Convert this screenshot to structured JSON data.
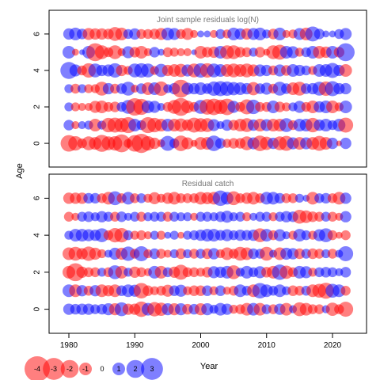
{
  "chart_data": {
    "type": "bubble",
    "xlabel": "Year",
    "ylabel": "Age",
    "x_ticks": [
      1980,
      1990,
      2000,
      2010,
      2020
    ],
    "y_ticks": [
      0,
      2,
      4,
      6
    ],
    "years_range": [
      1980,
      2022
    ],
    "ages": [
      0,
      1,
      2,
      3,
      4,
      5,
      6
    ],
    "colors": {
      "positive": "#0000FF",
      "negative": "#FF0000",
      "alpha": 0.5
    },
    "panels": [
      {
        "title": "Joint sample residuals log(N)",
        "residuals": {
          "0": [
            -1.7,
            -1.3,
            -0.6,
            -1.2,
            -1.0,
            -1.8,
            -1.2,
            -1.3,
            -2.0,
            -0.5,
            -1.7,
            -2.3,
            -1.3,
            -0.8,
            -0.4,
            1.4,
            0.6,
            -1.5,
            -0.9,
            -0.3,
            -1.0,
            -1.0,
            1.5,
            0.7,
            -0.5,
            -0.7,
            -0.7,
            -1.2,
            0.9,
            -1.5,
            -1.1,
            0.8,
            -1.2,
            -1.4,
            0.9,
            -1.0,
            0.9,
            -1.0,
            -1.4,
            -1.0,
            0.8,
            -0.2,
            0.8
          ],
          "1": [
            0.7,
            -0.4,
            0.4,
            0.5,
            -1.0,
            0.5,
            -1.3,
            -1.4,
            -1.3,
            -1.6,
            1.0,
            0.6,
            -1.6,
            -1.3,
            -1.0,
            1.0,
            -1.0,
            -1.1,
            -0.8,
            -1.4,
            -1.2,
            -1.2,
            0.9,
            0.4,
            0.8,
            -0.7,
            -1.0,
            -1.2,
            0.8,
            -1.0,
            0.9,
            -1.0,
            -1.0,
            1.2,
            -0.6,
            1.0,
            1.0,
            -1.3,
            0.8,
            1.0,
            0.6,
            1.0,
            -1.4
          ],
          "2": [
            0.5,
            -0.5,
            -0.4,
            -0.4,
            -0.9,
            -1.0,
            -0.6,
            -0.7,
            0.6,
            1.2,
            -1.9,
            -1.6,
            1.0,
            0.9,
            0.4,
            -0.6,
            -1.2,
            -2.0,
            -1.0,
            -0.6,
            1.2,
            -1.5,
            -1.7,
            -1.3,
            -1.7,
            0.9,
            -0.6,
            -1.4,
            1.3,
            -0.6,
            -0.6,
            1.0,
            -0.7,
            -0.5,
            0.5,
            0.9,
            -0.6,
            -1.0,
            0.8,
            1.0,
            -1.0,
            -0.5,
            1.0
          ],
          "3": [
            0.5,
            -0.6,
            0.5,
            -0.5,
            -0.5,
            -1.2,
            0.8,
            -0.6,
            0.7,
            1.2,
            -0.4,
            0.7,
            -1.0,
            1.0,
            -1.3,
            0.5,
            0.8,
            -2.0,
            0.9,
            0.8,
            1.0,
            0.7,
            1.3,
            1.4,
            1.3,
            1.1,
            1.0,
            0.8,
            -1.1,
            0.7,
            0.9,
            -0.6,
            1.2,
            0.7,
            -1.0,
            -1.2,
            0.7,
            0.8,
            1.2,
            -1.3,
            1.4,
            0.8,
            0.8
          ],
          "4": [
            1.8,
            0.9,
            -0.6,
            -1.3,
            1.2,
            0.8,
            0.9,
            1.3,
            -0.8,
            -0.5,
            1.2,
            1.3,
            1.2,
            -0.5,
            1.1,
            -0.8,
            -1.0,
            -1.1,
            0.9,
            -1.2,
            1.3,
            -1.3,
            1.2,
            1.0,
            -1.0,
            -1.2,
            -1.0,
            -1.2,
            -0.9,
            0.9,
            0.8,
            -0.6,
            0.9,
            -0.7,
            1.0,
            0.8,
            0.6,
            -0.5,
            1.0,
            1.0,
            1.4,
            0.8,
            -1.0
          ],
          "5": [
            1.0,
            -0.3,
            0.2,
            1.0,
            -2.0,
            -1.2,
            -0.6,
            -1.2,
            -0.4,
            0.9,
            -0.7,
            -1.0,
            -0.4,
            0.7,
            0.3,
            -0.6,
            -0.5,
            -0.4,
            -0.4,
            0.2,
            -1.0,
            -0.7,
            -0.8,
            1.0,
            -1.2,
            -1.2,
            -0.7,
            -0.6,
            0.5,
            -0.7,
            -0.3,
            -1.2,
            -1.4,
            1.0,
            0.9,
            -0.5,
            0.6,
            1.0,
            -1.0,
            -0.8,
            1.0,
            -0.7,
            2.0
          ],
          "6": [
            0.8,
            1.0,
            0.7,
            -0.9,
            -0.8,
            -0.8,
            -0.7,
            -1.2,
            -1.0,
            0.6,
            0.8,
            -0.6,
            -0.6,
            -0.7,
            -0.9,
            1.0,
            0.9,
            -0.6,
            -0.9,
            -0.4,
            0.3,
            0.3,
            -0.4,
            0.6,
            -0.5,
            1.0,
            0.8,
            -0.8,
            0.9,
            1.0,
            0.5,
            -0.7,
            1.0,
            -0.4,
            -0.5,
            0.9,
            -1.0,
            1.4,
            0.7,
            0.3,
            0.3,
            0.6,
            0.9
          ]
        }
      },
      {
        "title": "Residual catch",
        "residuals": {
          "0": [
            0.8,
            0.7,
            0.8,
            0.8,
            0.6,
            0.7,
            0.9,
            -0.9,
            1.2,
            -0.8,
            -0.8,
            -1.5,
            1.0,
            -1.3,
            -1.1,
            0.9,
            -0.9,
            0.9,
            -0.7,
            0.7,
            -0.9,
            0.9,
            0.5,
            1.0,
            0.8,
            -0.5,
            -0.6,
            -1.0,
            1.0,
            -1.0,
            0.6,
            -0.6,
            0.8,
            -1.0,
            0.4,
            -1.2,
            -1.0,
            -0.6,
            -0.6,
            0.4,
            -1.1,
            -0.6,
            -1.4
          ],
          "1": [
            1.0,
            -1.0,
            0.8,
            -0.6,
            0.8,
            -1.0,
            -0.8,
            -1.0,
            0.7,
            1.0,
            0.9,
            -1.5,
            -0.7,
            -0.5,
            -0.6,
            -0.9,
            0.7,
            0.9,
            -0.5,
            -0.7,
            -0.7,
            0.7,
            -0.5,
            0.7,
            -0.4,
            -0.6,
            1.0,
            0.6,
            -1.0,
            1.5,
            1.0,
            0.6,
            1.0,
            0.5,
            -0.7,
            -0.6,
            0.6,
            -1.0,
            -1.2,
            -1.6,
            1.2,
            1.0,
            -0.6
          ],
          "2": [
            -1.0,
            -2.0,
            -0.8,
            -0.6,
            -0.6,
            0.5,
            -0.6,
            1.2,
            -1.0,
            0.5,
            -0.8,
            -0.6,
            -0.4,
            1.0,
            -1.0,
            0.6,
            -0.8,
            -1.4,
            -0.6,
            -0.6,
            -0.5,
            -0.7,
            0.9,
            0.8,
            1.0,
            -1.2,
            0.5,
            1.0,
            0.6,
            0.9,
            -0.7,
            -1.0,
            1.5,
            -1.1,
            -0.6,
            1.0,
            0.9,
            -0.5,
            0.6,
            0.7,
            0.6,
            0.4,
            0.7
          ],
          "3": [
            -1.0,
            -1.2,
            -0.8,
            -1.3,
            -0.9,
            -0.5,
            0.4,
            0.9,
            -0.9,
            1.3,
            -0.6,
            1.4,
            -0.5,
            0.7,
            -0.6,
            -0.4,
            0.5,
            -0.7,
            0.5,
            -0.6,
            0.6,
            -0.7,
            0.8,
            -0.5,
            -1.0,
            -0.6,
            -1.2,
            -1.0,
            0.7,
            0.6,
            -1.2,
            0.4,
            -1.0,
            0.9,
            0.8,
            -0.7,
            0.6,
            -0.7,
            -0.6,
            0.5,
            -0.6,
            0.4,
            1.4
          ],
          "4": [
            0.5,
            1.0,
            1.0,
            0.9,
            0.8,
            1.2,
            -0.6,
            -1.3,
            -1.3,
            0.6,
            -0.5,
            -0.6,
            -0.4,
            0.5,
            -0.5,
            0.3,
            0.5,
            -0.3,
            0.5,
            0.6,
            0.8,
            1.0,
            1.0,
            0.7,
            0.9,
            0.6,
            0.8,
            0.7,
            0.8,
            -1.2,
            1.0,
            -0.6,
            0.9,
            0.4,
            -0.5,
            1.0,
            0.6,
            -0.5,
            0.9,
            1.2,
            -0.6,
            -0.3,
            -0.6
          ],
          "5": [
            -0.6,
            -0.4,
            0.6,
            0.7,
            0.5,
            0.8,
            0.6,
            -0.6,
            0.7,
            0.4,
            0.6,
            -0.6,
            0.5,
            0.6,
            0.6,
            -0.6,
            0.6,
            0.5,
            0.5,
            -0.4,
            0.6,
            0.6,
            0.5,
            0.7,
            0.9,
            0.5,
            0.6,
            -0.5,
            0.4,
            0.6,
            0.6,
            -0.5,
            0.6,
            0.8,
            0.7,
            -1.2,
            -1.0,
            -0.7,
            -0.6,
            0.6,
            -0.6,
            -0.4,
            0.8
          ],
          "6": [
            -0.8,
            -0.8,
            -0.8,
            0.7,
            0.7,
            -0.6,
            -1.0,
            1.2,
            -0.6,
            1.0,
            -0.6,
            0.6,
            -0.5,
            -0.9,
            -0.5,
            -0.8,
            -1.0,
            -0.6,
            -0.6,
            -0.6,
            -1.0,
            -0.9,
            -1.0,
            1.5,
            1.0,
            -1.2,
            -0.6,
            -0.8,
            -1.0,
            -0.6,
            1.0,
            1.0,
            0.7,
            -0.6,
            -0.6,
            0.5,
            0.3,
            -1.0,
            0.6,
            0.7,
            -0.6,
            -1.0,
            0.8
          ]
        }
      }
    ],
    "legend": {
      "values": [
        -4,
        -3,
        -2,
        -1,
        0,
        1,
        2,
        3
      ],
      "labels": [
        "-4",
        "-3",
        "-2",
        "-1",
        "0",
        "1",
        "2",
        "3"
      ]
    }
  }
}
